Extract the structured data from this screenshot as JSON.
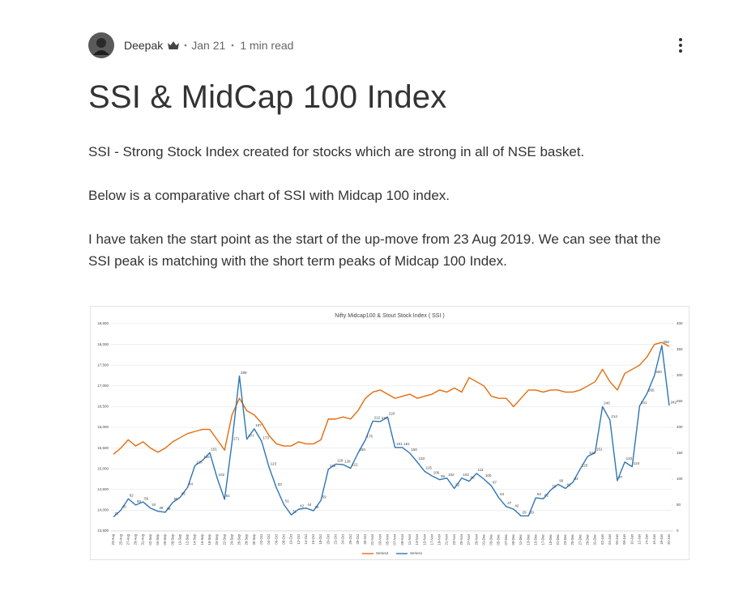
{
  "post": {
    "author": "Deepak",
    "date": "Jan 21",
    "read_time": "1 min read",
    "title": "SSI & MidCap 100 Index",
    "paragraphs": [
      "SSI - Strong Stock Index created for stocks which are strong in all of NSE basket.",
      "Below is a comparative chart of SSI with Midcap 100 index.",
      "I have taken the start point as the start of the up-move from 23 Aug 2019. We can see that the SSI peak is matching with the short term peaks of Midcap 100 Index."
    ]
  },
  "chart_data": {
    "type": "line",
    "title": "Nifty Midcap100 & Stout Stock Index ( SSI )",
    "categories": [
      "23-Aug",
      "25-Aug",
      "27-Aug",
      "29-Aug",
      "31-Aug",
      "02-Sep",
      "04-Sep",
      "06-Sep",
      "08-Sep",
      "10-Sep",
      "12-Sep",
      "14-Sep",
      "16-Sep",
      "18-Sep",
      "20-Sep",
      "22-Sep",
      "24-Sep",
      "26-Sep",
      "28-Sep",
      "30-Sep",
      "02-Oct",
      "04-Oct",
      "06-Oct",
      "08-Oct",
      "10-Oct",
      "12-Oct",
      "14-Oct",
      "16-Oct",
      "18-Oct",
      "20-Oct",
      "22-Oct",
      "24-Oct",
      "26-Oct",
      "28-Oct",
      "30-Oct",
      "01-Nov",
      "03-Nov",
      "05-Nov",
      "07-Nov",
      "09-Nov",
      "11-Nov",
      "13-Nov",
      "15-Nov",
      "17-Nov",
      "19-Nov",
      "21-Nov",
      "23-Nov",
      "25-Nov",
      "27-Nov",
      "29-Nov",
      "01-Dec",
      "03-Dec",
      "05-Dec",
      "07-Dec",
      "09-Dec",
      "11-Dec",
      "13-Dec",
      "15-Dec",
      "17-Dec",
      "19-Dec",
      "21-Dec",
      "23-Dec",
      "25-Dec",
      "27-Dec",
      "29-Dec",
      "31-Dec",
      "02-Jan",
      "04-Jan",
      "06-Jan",
      "08-Jan",
      "10-Jan",
      "12-Jan",
      "14-Jan",
      "16-Jan",
      "18-Jan",
      "20-Jan"
    ],
    "series": [
      {
        "name": "Series2",
        "color": "#e46c0a",
        "values": [
          15350,
          15500,
          15700,
          15550,
          15650,
          15500,
          15400,
          15500,
          15650,
          15750,
          15850,
          15900,
          15950,
          15950,
          15700,
          15450,
          16300,
          16700,
          16400,
          16300,
          16100,
          15800,
          15600,
          15550,
          15550,
          15650,
          15600,
          15600,
          15700,
          16200,
          16200,
          16250,
          16200,
          16400,
          16700,
          16850,
          16900,
          16800,
          16700,
          16750,
          16800,
          16700,
          16750,
          16800,
          16900,
          16850,
          16950,
          16850,
          17200,
          17100,
          17000,
          16750,
          16700,
          16700,
          16500,
          16700,
          16900,
          16900,
          16850,
          16900,
          16900,
          16850,
          16850,
          16900,
          17000,
          17100,
          17400,
          17100,
          16900,
          17300,
          17400,
          17500,
          17700,
          18000,
          18050,
          17950
        ]
      },
      {
        "name": "Series1",
        "color": "#2e75b6",
        "axis": "y2",
        "data_labels": true,
        "values": [
          27,
          40,
          62,
          50,
          56,
          44,
          38,
          36,
          55,
          65,
          84,
          126,
          136,
          151,
          102,
          61,
          171,
          299,
          177,
          197,
          173,
          123,
          83,
          51,
          31,
          42,
          44,
          39,
          59,
          119,
          129,
          128,
          121,
          150,
          176,
          212,
          211,
          220,
          161,
          161,
          150,
          133,
          115,
          106,
          99,
          102,
          82,
          102,
          96,
          111,
          100,
          87,
          64,
          47,
          42,
          29,
          29,
          64,
          62,
          79,
          90,
          82,
          94,
          120,
          144,
          151,
          240,
          214,
          97,
          133,
          124,
          241,
          265,
          300,
          358,
          242
        ]
      }
    ],
    "ylim": [
      13500,
      18500
    ],
    "yticks": [
      {
        "value": 13500,
        "label": "13,500"
      },
      {
        "value": 14000,
        "label": "14,000"
      },
      {
        "value": 14500,
        "label": "14,500"
      },
      {
        "value": 15000,
        "label": "15,000"
      },
      {
        "value": 15500,
        "label": "15,500"
      },
      {
        "value": 16000,
        "label": "16,000"
      },
      {
        "value": 16500,
        "label": "16,500"
      },
      {
        "value": 17000,
        "label": "17,000"
      },
      {
        "value": 17500,
        "label": "17,500"
      },
      {
        "value": 18000,
        "label": "18,000"
      },
      {
        "value": 18500,
        "label": "18,500"
      }
    ],
    "y2lim": [
      0,
      400
    ],
    "y2ticks": [
      0,
      50,
      100,
      150,
      200,
      250,
      300,
      350,
      400
    ],
    "grid": true,
    "legend": "bottom"
  }
}
